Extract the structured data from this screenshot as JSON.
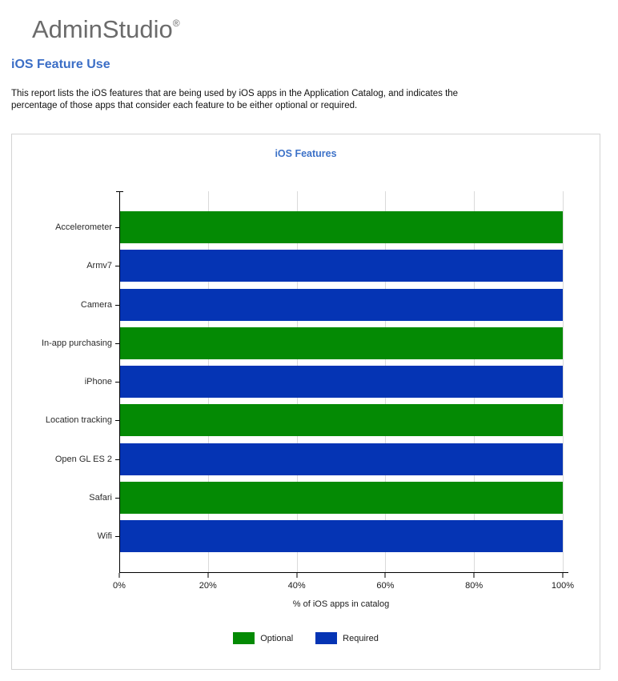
{
  "logo": {
    "text": "AdminStudio",
    "registered": "®"
  },
  "page": {
    "title": "iOS Feature Use",
    "description": "This report lists the iOS features that are being used by iOS apps in the Application Catalog, and indicates the percentage of those apps  that consider each feature to be either optional or required."
  },
  "colors": {
    "optional_green": "#048a04",
    "required_blue": "#0534b4",
    "heading_blue": "#3b6ec6",
    "logo_gray": "#6b6b6b",
    "panel_border": "#d4d4d4",
    "gridline": "#dadada"
  },
  "chart_data": {
    "type": "bar",
    "orientation": "horizontal",
    "title": "iOS Features",
    "xlabel": "% of iOS apps in catalog",
    "xlim": [
      0,
      100
    ],
    "x_ticks": [
      "0%",
      "20%",
      "40%",
      "60%",
      "80%",
      "100%"
    ],
    "grid": true,
    "legend_position": "bottom",
    "categories": [
      "Accelerometer",
      "Armv7",
      "Camera",
      "In-app purchasing",
      "iPhone",
      "Location tracking",
      "Open GL ES 2",
      "Safari",
      "Wifi"
    ],
    "values": [
      100,
      100,
      100,
      100,
      100,
      100,
      100,
      100,
      100
    ],
    "series_by_bar": [
      "Optional",
      "Required",
      "Required",
      "Optional",
      "Required",
      "Optional",
      "Required",
      "Optional",
      "Required"
    ],
    "legend": [
      {
        "label": "Optional",
        "color": "#048a04"
      },
      {
        "label": "Required",
        "color": "#0534b4"
      }
    ]
  }
}
